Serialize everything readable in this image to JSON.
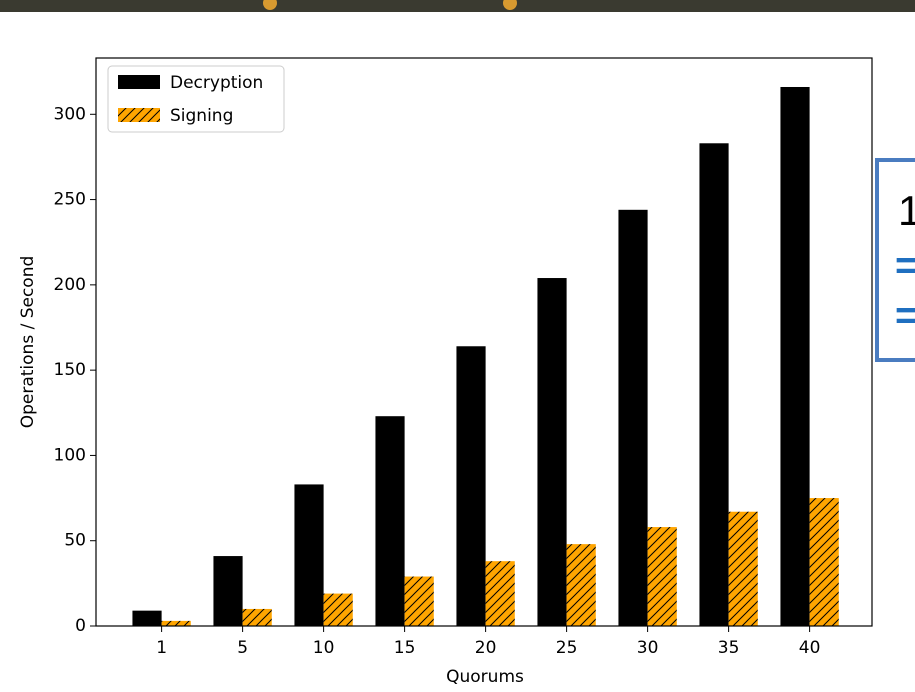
{
  "chart_data": {
    "type": "bar",
    "x_label": "Quorums",
    "y_label": "Operations / Second",
    "categories": [
      "1",
      "5",
      "10",
      "15",
      "20",
      "25",
      "30",
      "35",
      "40"
    ],
    "series": [
      {
        "name": "Decryption",
        "color": "#000000",
        "values": [
          9,
          41,
          83,
          123,
          164,
          204,
          244,
          283,
          316
        ]
      },
      {
        "name": "Signing",
        "color": "#ffa500",
        "hatch": "//",
        "values": [
          3,
          10,
          19,
          29,
          38,
          48,
          58,
          67,
          75
        ]
      }
    ],
    "ylim": [
      0,
      333
    ],
    "yticks": [
      0,
      50,
      100,
      150,
      200,
      250,
      300
    ],
    "legend": "upper left"
  },
  "side_panel": {
    "lines": [
      "1",
      "=",
      "="
    ]
  }
}
